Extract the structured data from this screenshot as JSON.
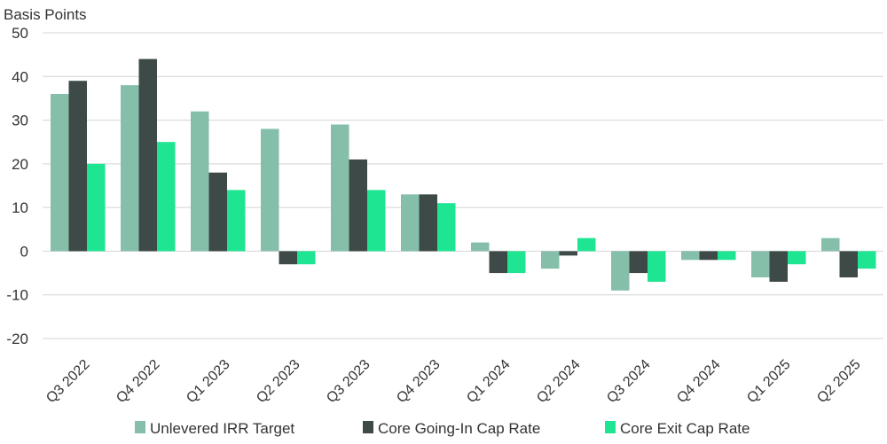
{
  "chart_data": {
    "type": "bar",
    "title": "",
    "ylabel": "Basis Points",
    "xlabel": "",
    "ylim": [
      -20,
      50
    ],
    "yticks": [
      50,
      40,
      30,
      20,
      10,
      0,
      -10,
      -20
    ],
    "grid": true,
    "legend_position": "bottom",
    "categories": [
      "Q3 2022",
      "Q4 2022",
      "Q1 2023",
      "Q2 2023",
      "Q3 2023",
      "Q4 2023",
      "Q1 2024",
      "Q2 2024",
      "Q3 2024",
      "Q4 2024",
      "Q1 2025",
      "Q2 2025"
    ],
    "series": [
      {
        "name": "Unlevered IRR Target",
        "color": "#85bfaa",
        "values": [
          36,
          38,
          32,
          28,
          29,
          13,
          2,
          -4,
          -9,
          -2,
          -6,
          3
        ]
      },
      {
        "name": "Core Going-In Cap Rate",
        "color": "#3d4a48",
        "values": [
          39,
          44,
          18,
          -3,
          21,
          13,
          -5,
          -1,
          -5,
          -2,
          -7,
          -6
        ]
      },
      {
        "name": "Core Exit Cap Rate",
        "color": "#1ee591",
        "values": [
          20,
          25,
          14,
          -3,
          14,
          11,
          -5,
          3,
          -7,
          -2,
          -3,
          -4
        ]
      }
    ]
  }
}
